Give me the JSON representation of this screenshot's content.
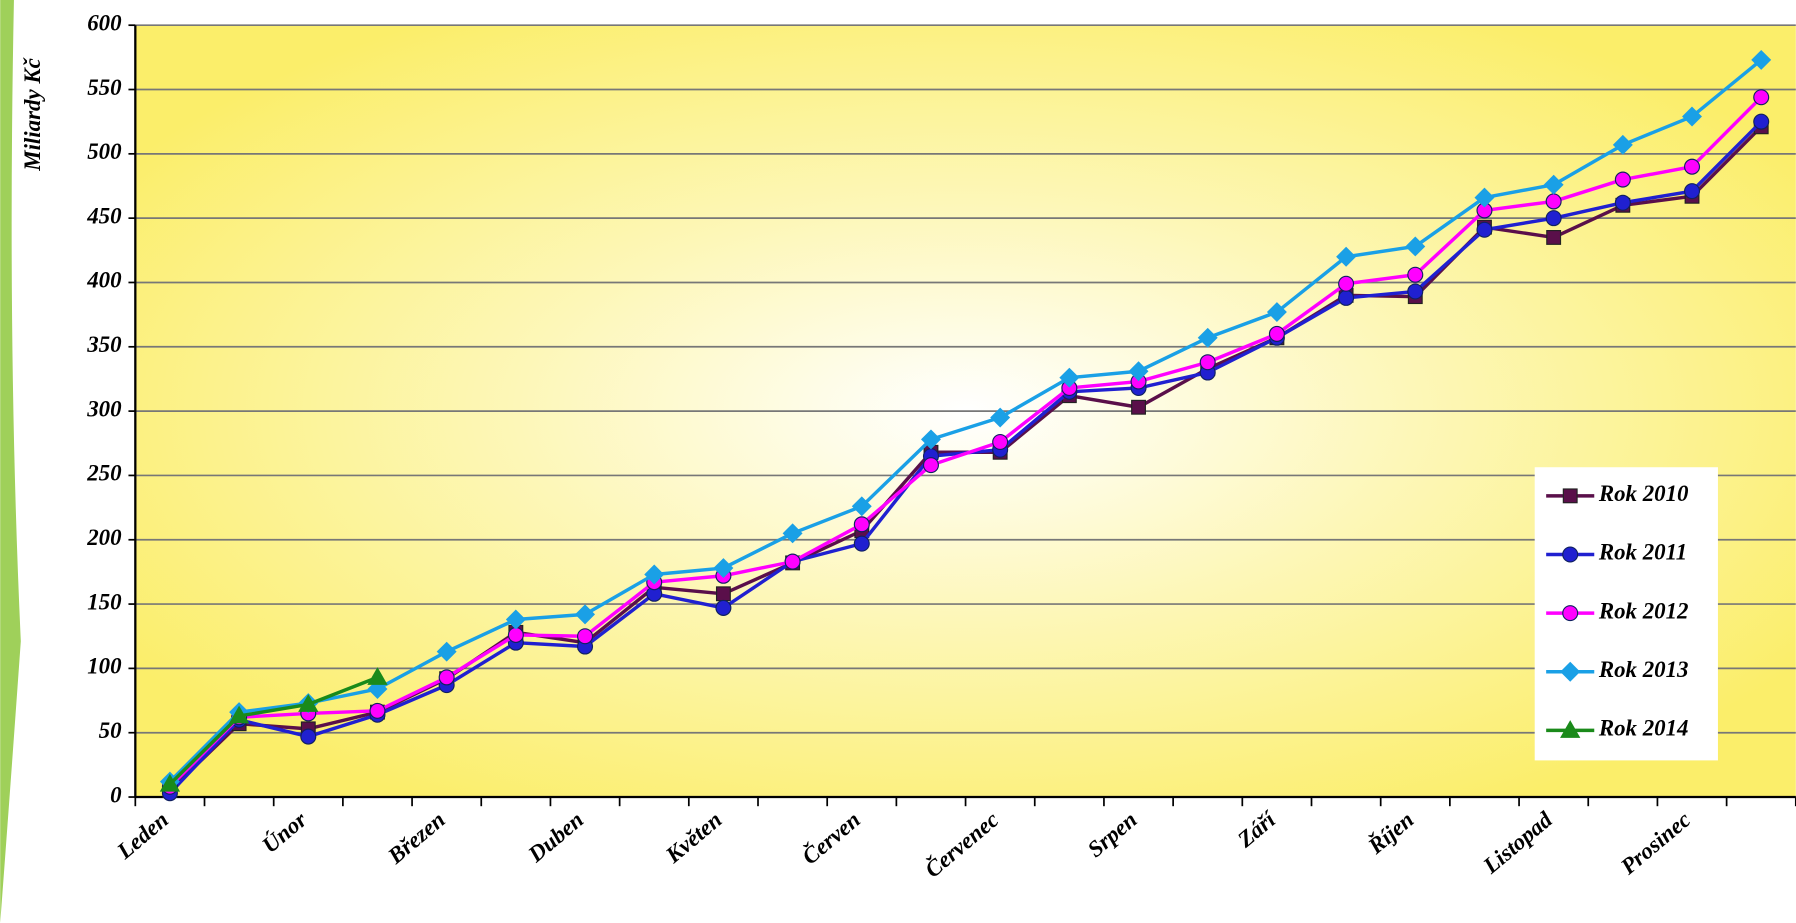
{
  "chart_data": {
    "type": "line",
    "y_label": "Miliardy Kč",
    "categories": [
      "Leden",
      null,
      "Únor",
      null,
      "Březen",
      null,
      "Duben",
      null,
      "Květen",
      null,
      "Červen",
      null,
      "Červenec",
      null,
      "Srpen",
      null,
      "Září",
      null,
      "Říjen",
      null,
      "Listopad",
      null,
      "Prosinec",
      null
    ],
    "ylim": [
      0,
      600
    ],
    "yticks": [
      0,
      50,
      100,
      150,
      200,
      250,
      300,
      350,
      400,
      450,
      500,
      550,
      600
    ],
    "grid": true,
    "legend": "lower right",
    "series": [
      {
        "name": "Rok 2010",
        "color": "#5a0f4a",
        "marker": "square",
        "values": [
          5,
          57,
          53,
          66,
          92,
          128,
          120,
          163,
          158,
          182,
          207,
          268,
          268,
          312,
          303,
          333,
          357,
          390,
          389,
          443,
          435,
          460,
          467,
          521
        ]
      },
      {
        "name": "Rok 2011",
        "color": "#2020d0",
        "marker": "circle",
        "values": [
          3,
          60,
          47,
          64,
          87,
          120,
          117,
          158,
          147,
          183,
          197,
          265,
          270,
          315,
          318,
          330,
          357,
          388,
          393,
          441,
          450,
          462,
          471,
          525
        ]
      },
      {
        "name": "Rok 2012",
        "color": "#ff00ff",
        "marker": "circle",
        "values": [
          8,
          62,
          65,
          67,
          93,
          126,
          125,
          167,
          172,
          183,
          212,
          258,
          276,
          318,
          323,
          338,
          360,
          399,
          406,
          456,
          463,
          480,
          490,
          544
        ]
      },
      {
        "name": "Rok 2013",
        "color": "#1aa0e6",
        "marker": "diamond",
        "values": [
          12,
          66,
          73,
          84,
          113,
          138,
          142,
          173,
          178,
          205,
          226,
          278,
          295,
          326,
          331,
          357,
          377,
          420,
          428,
          466,
          476,
          507,
          529,
          573
        ]
      },
      {
        "name": "Rok 2014",
        "color": "#1a8a1a",
        "marker": "triangle",
        "values": [
          10,
          63,
          72,
          93,
          null,
          null,
          null,
          null,
          null,
          null,
          null,
          null,
          null,
          null,
          null,
          null,
          null,
          null,
          null,
          null,
          null,
          null,
          null,
          null
        ]
      }
    ]
  }
}
